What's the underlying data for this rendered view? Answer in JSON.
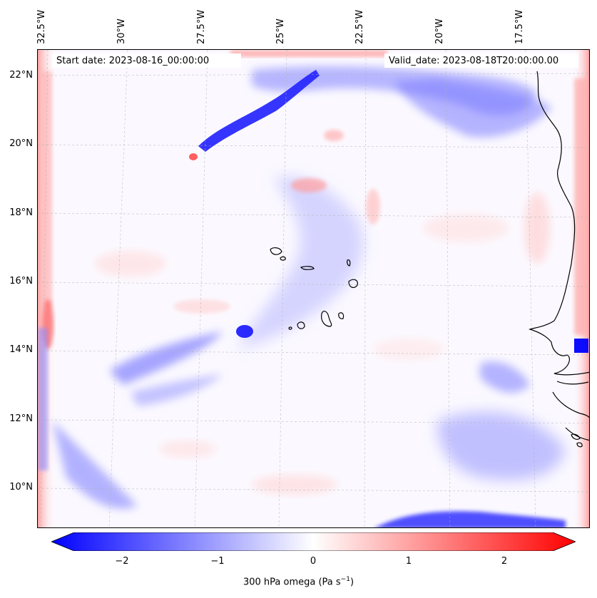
{
  "header": {
    "start_date": "Start date: 2023-08-16_00:00:00",
    "valid_date": "Valid_date: 2023-08-18T20:00:00.00"
  },
  "axes": {
    "longitude_labels": [
      "32.5°W",
      "30°W",
      "27.5°W",
      "25°W",
      "22.5°W",
      "20°W",
      "17.5°W"
    ],
    "latitude_labels": [
      "22°N",
      "20°N",
      "18°N",
      "16°N",
      "14°N",
      "12°N",
      "10°N"
    ]
  },
  "colorbar": {
    "ticks": [
      "−2",
      "−1",
      "0",
      "1",
      "2"
    ],
    "tick_values": [
      -2,
      -1,
      0,
      1,
      2
    ],
    "range": [
      -2.5,
      2.5
    ],
    "label_main": "300 hPa omega (Pa s",
    "label_exp": "−1",
    "label_end": ")",
    "colormap": "bwr",
    "colors": {
      "low": "#0000ff",
      "mid": "#ffffff",
      "high": "#ff0000"
    }
  },
  "map": {
    "field": "300 hPa omega",
    "region": "Cape Verde / West Africa coast",
    "gridlines": true
  }
}
